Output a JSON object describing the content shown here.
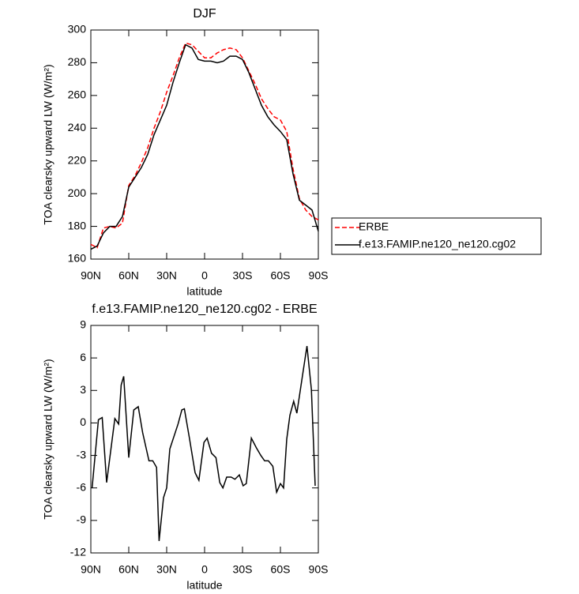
{
  "chart_data": [
    {
      "type": "line",
      "title": "DJF",
      "xlabel": "latitude",
      "ylabel": "TOA clearsky upward LW (W/m²)",
      "xlim": [
        90,
        -90
      ],
      "xticks": [
        {
          "value": 90,
          "label": "90N"
        },
        {
          "value": 60,
          "label": "60N"
        },
        {
          "value": 30,
          "label": "30N"
        },
        0,
        {
          "value": -30,
          "label": "30S"
        },
        {
          "value": -60,
          "label": "60S"
        },
        {
          "value": -90,
          "label": "90S"
        }
      ],
      "ylim": [
        160,
        300
      ],
      "yticks": [
        160,
        180,
        200,
        220,
        240,
        260,
        280,
        300
      ],
      "legend": "right",
      "series": [
        {
          "name": "ERBE",
          "color": "#ff0000",
          "linestyle": "dashed",
          "x": [
            90,
            85,
            80,
            75,
            70,
            65,
            60,
            55,
            50,
            45,
            40,
            35,
            30,
            25,
            20,
            15,
            10,
            5,
            0,
            -5,
            -10,
            -15,
            -20,
            -25,
            -30,
            -35,
            -40,
            -45,
            -50,
            -55,
            -60,
            -65,
            -70,
            -75,
            -80,
            -85,
            -90
          ],
          "values": [
            169,
            167,
            179,
            180,
            179,
            182,
            205,
            211,
            219,
            228,
            240,
            250,
            262,
            272,
            283,
            292,
            291,
            287,
            283,
            283,
            286,
            288,
            289,
            288,
            283,
            275,
            267,
            258,
            252,
            247,
            245,
            238,
            215,
            197,
            190,
            186,
            184
          ]
        },
        {
          "name": "f.e13.FAMIP.ne120_ne120.cg02",
          "color": "#000000",
          "linestyle": "solid",
          "x": [
            90,
            85,
            80,
            75,
            70,
            65,
            60,
            55,
            50,
            45,
            40,
            35,
            30,
            25,
            20,
            15,
            10,
            5,
            0,
            -5,
            -10,
            -15,
            -20,
            -25,
            -30,
            -35,
            -40,
            -45,
            -50,
            -55,
            -60,
            -65,
            -70,
            -75,
            -80,
            -85,
            -90
          ],
          "values": [
            166,
            168,
            176,
            180,
            180,
            186,
            204,
            210,
            216,
            224,
            236,
            245,
            254,
            268,
            280,
            291,
            289,
            282,
            281,
            281,
            280,
            281,
            284,
            284,
            282,
            274,
            264,
            254,
            247,
            242,
            238,
            233,
            212,
            196,
            193,
            190,
            177
          ]
        }
      ]
    },
    {
      "type": "line",
      "title": "f.e13.FAMIP.ne120_ne120.cg02 - ERBE",
      "xlabel": "latitude",
      "ylabel": "TOA clearsky upward LW (W/m²)",
      "xlim": [
        90,
        -90
      ],
      "xticks": [
        {
          "value": 90,
          "label": "90N"
        },
        {
          "value": 60,
          "label": "60N"
        },
        {
          "value": 30,
          "label": "30N"
        },
        0,
        {
          "value": -30,
          "label": "30S"
        },
        {
          "value": -60,
          "label": "60S"
        },
        {
          "value": -90,
          "label": "90S"
        }
      ],
      "ylim": [
        -12,
        9
      ],
      "yticks": [
        -12,
        -9,
        -6,
        -3,
        0,
        3,
        6,
        9
      ],
      "series": [
        {
          "color": "#000000",
          "linestyle": "solid",
          "x": [
            89,
            84,
            81,
            77.5,
            71,
            68,
            66,
            64,
            60,
            56,
            52.5,
            49,
            44,
            41,
            38,
            36,
            32.5,
            30,
            27.5,
            21,
            18,
            16,
            12,
            7.5,
            4.5,
            0.5,
            -2,
            -5.5,
            -9,
            -12,
            -14.5,
            -17.5,
            -21,
            -24,
            -27.5,
            -30.5,
            -33,
            -37,
            -41,
            -44.5,
            -47.5,
            -50.5,
            -54,
            -57,
            -60,
            -62.5,
            -65,
            -67.5,
            -70.5,
            -73,
            -77.5,
            -81,
            -84.5,
            -87.5
          ],
          "values": [
            -6,
            0.3,
            0.5,
            -5.5,
            0.4,
            -0.1,
            3.5,
            4.3,
            -3.2,
            1.2,
            1.5,
            -0.9,
            -3.5,
            -3.5,
            -4.1,
            -10.9,
            -6.9,
            -6,
            -2.4,
            -0.1,
            1.2,
            1.3,
            -1.4,
            -4.6,
            -5.3,
            -1.8,
            -1.4,
            -2.8,
            -3.2,
            -5.5,
            -6,
            -5,
            -5,
            -5.2,
            -4.8,
            -5.8,
            -5.6,
            -1.4,
            -2.3,
            -3,
            -3.5,
            -3.5,
            -4,
            -6.4,
            -5.6,
            -6,
            -1.5,
            0.7,
            2,
            0.9,
            4.4,
            7.1,
            3.1,
            -5.8
          ]
        }
      ]
    }
  ]
}
